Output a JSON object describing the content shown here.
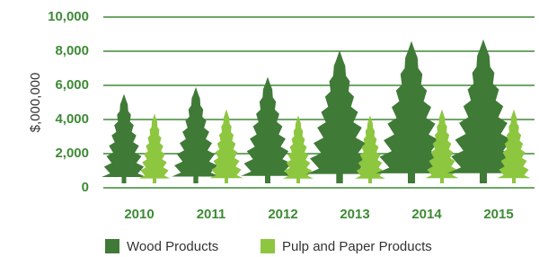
{
  "chart_data": {
    "type": "pictograph",
    "y_label": "$,000,000",
    "categories": [
      "2010",
      "2011",
      "2012",
      "2013",
      "2014",
      "2015"
    ],
    "series": [
      {
        "name": "Wood Products",
        "color": "#3f7a37",
        "values": [
          5500,
          5900,
          6500,
          8050,
          8600,
          8700
        ]
      },
      {
        "name": "Pulp and Paper Products",
        "color": "#8dc63f",
        "values": [
          4350,
          4600,
          4250,
          4250,
          4600,
          4600
        ]
      }
    ],
    "ylim": [
      0,
      10000
    ],
    "yticks": [
      0,
      {
        "value": 2000,
        "label": "2,000"
      },
      {
        "value": 4000,
        "label": "4,000"
      },
      {
        "value": 6000,
        "label": "6,000"
      },
      {
        "value": 8000,
        "label": "8,000"
      },
      {
        "value": 10000,
        "label": "10,000"
      }
    ],
    "grid": true,
    "grid_color": "#3e8a35",
    "tick_color": "#3e8a35",
    "legend": "bottom"
  }
}
